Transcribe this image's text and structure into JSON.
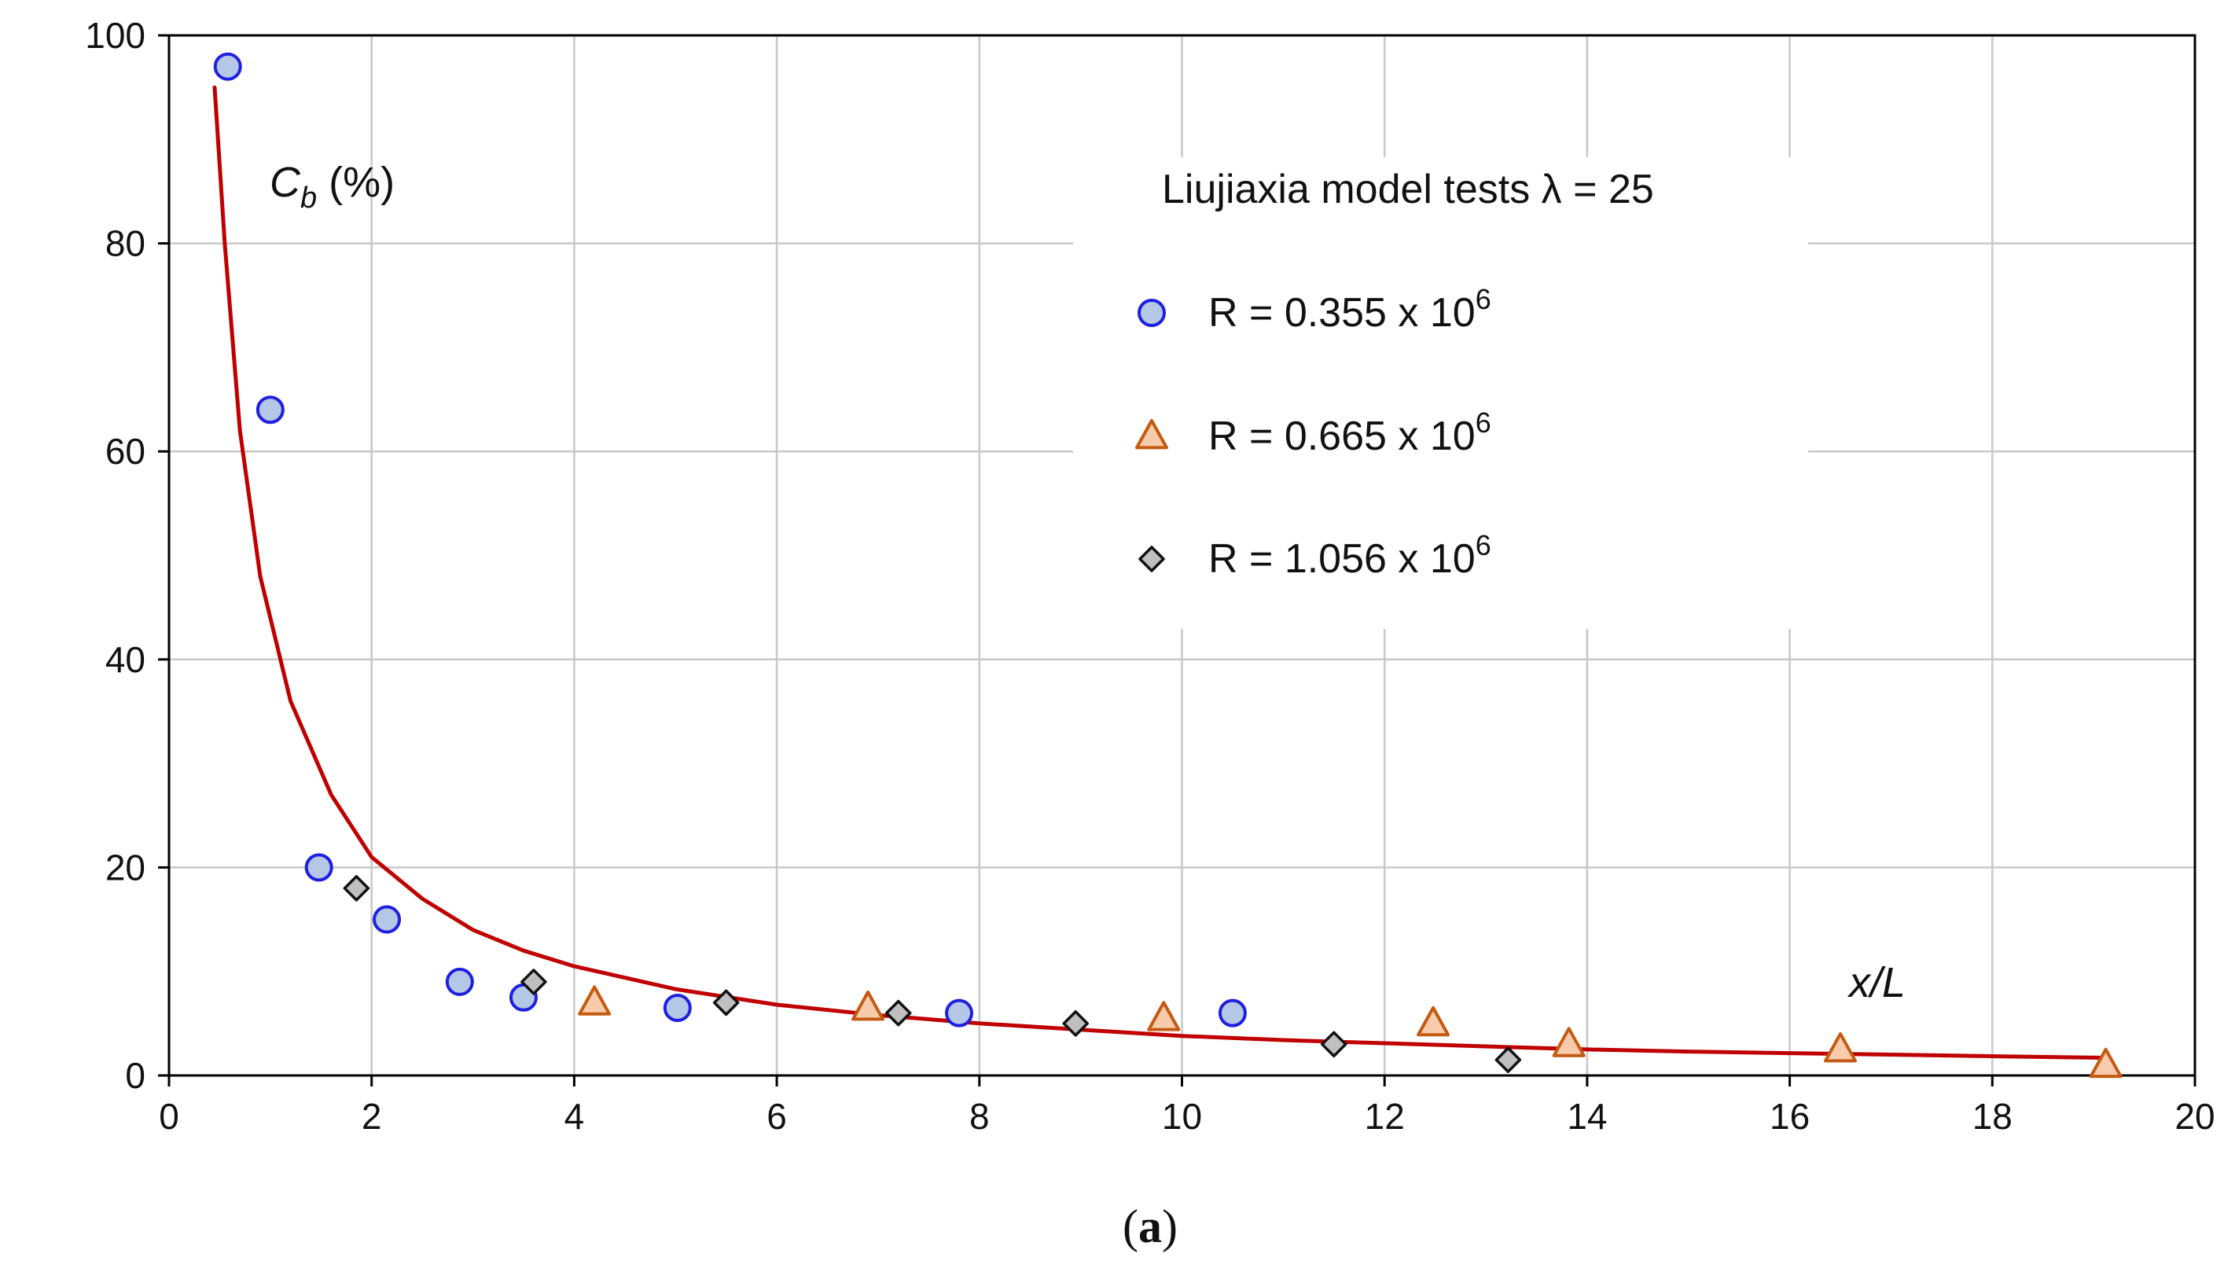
{
  "chart_data": {
    "type": "scatter",
    "xlim": [
      0,
      20
    ],
    "ylim": [
      0,
      100
    ],
    "x_ticks": [
      0,
      2,
      4,
      6,
      8,
      10,
      12,
      14,
      16,
      18,
      20
    ],
    "y_ticks": [
      0,
      20,
      40,
      60,
      80,
      100
    ],
    "grid": true,
    "ylabel_main": "C",
    "ylabel_sub": "b",
    "ylabel_unit": " (%)",
    "xlabel": "x/L",
    "legend_title": "Liujiaxia model tests λ = 25",
    "legend_placement": "top-right",
    "caption_open": "(",
    "caption_letter": "a",
    "caption_close": ")",
    "series": [
      {
        "label_base": "R = 0.355 x 10",
        "label_exp": "6",
        "marker": "circle",
        "fill": "#b4c7e7",
        "stroke": "#1f1fe0",
        "points": [
          [
            0.58,
            97
          ],
          [
            1.0,
            64
          ],
          [
            1.48,
            20
          ],
          [
            2.15,
            15
          ],
          [
            2.87,
            9
          ],
          [
            3.5,
            7.5
          ],
          [
            5.02,
            6.5
          ],
          [
            7.8,
            6
          ],
          [
            10.5,
            6
          ]
        ]
      },
      {
        "label_base": "R = 0.665 x 10",
        "label_exp": "6",
        "marker": "triangle",
        "fill": "#f8cbad",
        "stroke": "#c55a11",
        "points": [
          [
            4.2,
            7
          ],
          [
            6.9,
            6.5
          ],
          [
            9.82,
            5.5
          ],
          [
            12.48,
            5
          ],
          [
            13.82,
            3
          ],
          [
            16.5,
            2.5
          ],
          [
            19.12,
            1
          ]
        ]
      },
      {
        "label_base": "R = 1.056 x 10",
        "label_exp": "6",
        "marker": "diamond",
        "fill": "#bfbfbf",
        "stroke": "#111111",
        "points": [
          [
            1.85,
            18
          ],
          [
            3.6,
            9
          ],
          [
            5.5,
            7
          ],
          [
            7.2,
            6
          ],
          [
            8.95,
            5
          ],
          [
            11.5,
            3
          ],
          [
            13.22,
            1.5
          ]
        ]
      }
    ],
    "fit_curve": {
      "color": "#c00000",
      "x_range": [
        0.45,
        19.1
      ],
      "points": [
        [
          0.45,
          95
        ],
        [
          0.55,
          80
        ],
        [
          0.7,
          62
        ],
        [
          0.9,
          48
        ],
        [
          1.2,
          36
        ],
        [
          1.6,
          27
        ],
        [
          2.0,
          21
        ],
        [
          2.5,
          17
        ],
        [
          3.0,
          14
        ],
        [
          3.5,
          12
        ],
        [
          4.0,
          10.5
        ],
        [
          5.0,
          8.3
        ],
        [
          6.0,
          6.8
        ],
        [
          7.0,
          5.8
        ],
        [
          8.0,
          5.0
        ],
        [
          9.0,
          4.4
        ],
        [
          10.0,
          3.8
        ],
        [
          11.0,
          3.4
        ],
        [
          12.0,
          3.1
        ],
        [
          13.0,
          2.8
        ],
        [
          14.0,
          2.5
        ],
        [
          15.0,
          2.3
        ],
        [
          16.0,
          2.15
        ],
        [
          17.0,
          2.0
        ],
        [
          18.0,
          1.85
        ],
        [
          19.1,
          1.7
        ]
      ]
    }
  }
}
